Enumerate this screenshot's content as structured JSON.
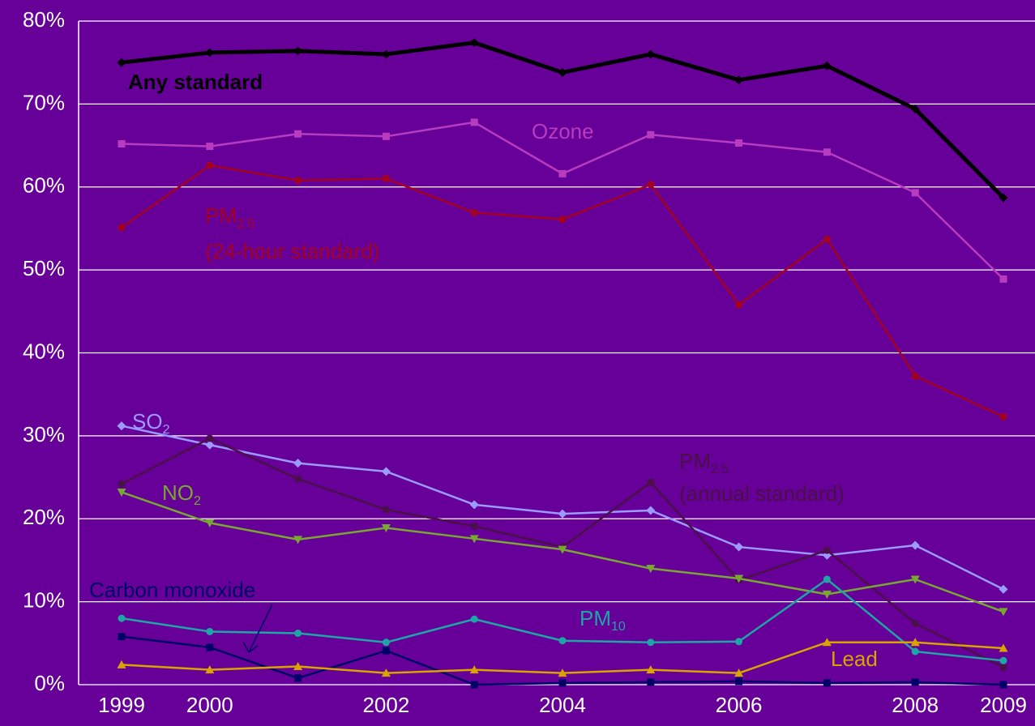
{
  "chart_data": {
    "type": "line",
    "categories": [
      "1999",
      "2000",
      null,
      "2002",
      null,
      "2004",
      null,
      "2006",
      null,
      "2008",
      "2009"
    ],
    "ylim": [
      0,
      80
    ],
    "yticks": [
      {
        "value": 0,
        "label": "0%"
      },
      {
        "value": 10,
        "label": "10%"
      },
      {
        "value": 20,
        "label": "20%"
      },
      {
        "value": 30,
        "label": "30%"
      },
      {
        "value": 40,
        "label": "40%"
      },
      {
        "value": 50,
        "label": "50%"
      },
      {
        "value": 60,
        "label": "60%"
      },
      {
        "value": 70,
        "label": "70%"
      },
      {
        "value": 80,
        "label": "80%"
      }
    ],
    "grid": true,
    "series": [
      {
        "label": {
          "main": "Any standard"
        },
        "color": "#000000",
        "marker": "diamond",
        "values": [
          75.0,
          76.2,
          76.4,
          76.0,
          77.4,
          73.8,
          76.0,
          72.9,
          74.6,
          69.4,
          58.7
        ]
      },
      {
        "label": {
          "main": "Ozone"
        },
        "color": "#b83cc0",
        "marker": "square",
        "values": [
          65.2,
          64.9,
          66.4,
          66.1,
          67.8,
          61.6,
          66.3,
          65.3,
          64.2,
          59.3,
          48.9
        ]
      },
      {
        "label": {
          "main": "PM",
          "sub": "2.5",
          "line2": "(24-hour standard)"
        },
        "color": "#a30020",
        "marker": "circle",
        "values": [
          55.1,
          62.6,
          60.8,
          61.0,
          56.9,
          56.1,
          60.3,
          45.8,
          53.7,
          37.2,
          32.3
        ]
      },
      {
        "label": {
          "main": "SO",
          "sub": "2"
        },
        "color": "#9a9aff",
        "marker": "diamond",
        "values": [
          31.2,
          28.9,
          26.7,
          25.7,
          21.7,
          20.6,
          21.0,
          16.6,
          15.6,
          16.8,
          11.5
        ]
      },
      {
        "label": {
          "main": "PM",
          "sub": "2.5",
          "line2": "(annual standard)"
        },
        "color": "#4a1048",
        "marker": "circle",
        "values": [
          24.2,
          29.7,
          24.8,
          21.1,
          19.1,
          16.6,
          24.4,
          12.6,
          16.2,
          7.4,
          2.1
        ]
      },
      {
        "label": {
          "main": "NO",
          "sub": "2"
        },
        "color": "#78a832",
        "marker": "triangle-down",
        "values": [
          23.2,
          19.5,
          17.5,
          18.9,
          17.6,
          16.3,
          14.0,
          12.8,
          10.9,
          12.7,
          8.8
        ]
      },
      {
        "label": {
          "main": "PM",
          "sub": "10"
        },
        "color": "#1ea5a5",
        "marker": "circle",
        "values": [
          8.0,
          6.4,
          6.2,
          5.1,
          7.9,
          5.3,
          5.1,
          5.2,
          12.7,
          4.0,
          2.9
        ]
      },
      {
        "label": {
          "main": "Carbon monoxide"
        },
        "color": "#000066",
        "marker": "square",
        "values": [
          5.8,
          4.5,
          0.8,
          4.1,
          0.0,
          0.2,
          0.3,
          0.4,
          0.2,
          0.3,
          0.0
        ]
      },
      {
        "label": {
          "main": "Lead"
        },
        "color": "#d9a400",
        "marker": "triangle",
        "values": [
          2.4,
          1.8,
          2.2,
          1.4,
          1.8,
          1.4,
          1.8,
          1.4,
          5.1,
          5.1,
          4.4
        ]
      }
    ]
  }
}
